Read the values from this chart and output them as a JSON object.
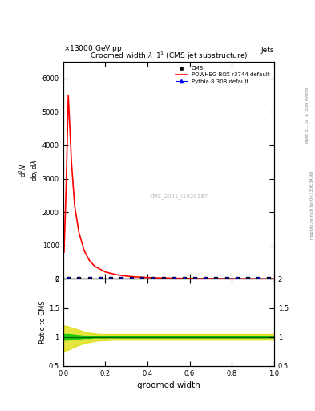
{
  "title": "Groomed width $\\lambda\\_1^1$ (CMS jet substructure)",
  "header_left": "\\times13000 GeV pp",
  "header_right": "Jets",
  "watermark": "CMS_2021_I1920187",
  "xlabel": "groomed width",
  "ylabel_ratio": "Ratio to CMS",
  "ylim_main": [
    0,
    6500
  ],
  "ylim_ratio": [
    0.5,
    2.0
  ],
  "xlim": [
    0,
    1.0
  ],
  "yticks_main": [
    0,
    1000,
    2000,
    3000,
    4000,
    5000,
    6000
  ],
  "cms_color": "#000000",
  "powheg_color": "#ff0000",
  "pythia_color": "#0000ff",
  "powheg_x": [
    0.005,
    0.015,
    0.025,
    0.04,
    0.055,
    0.075,
    0.1,
    0.125,
    0.15,
    0.2,
    0.25,
    0.3,
    0.35,
    0.4,
    0.45,
    0.5,
    0.55,
    0.6,
    0.65,
    0.7,
    0.75,
    0.8,
    0.85,
    0.9,
    0.95,
    1.0
  ],
  "powheg_y": [
    800,
    2800,
    5500,
    3500,
    2200,
    1400,
    850,
    550,
    380,
    210,
    130,
    85,
    58,
    42,
    31,
    24,
    18,
    14,
    11,
    9,
    7,
    6,
    5,
    4,
    3,
    2
  ],
  "cms_x": [
    0.025,
    0.075,
    0.125,
    0.175,
    0.225,
    0.275,
    0.325,
    0.375,
    0.425,
    0.475,
    0.525,
    0.575,
    0.625,
    0.675,
    0.725,
    0.775,
    0.825,
    0.875,
    0.925,
    0.975
  ],
  "cms_y": [
    0.5,
    0.5,
    0.5,
    0.5,
    0.5,
    0.5,
    0.5,
    0.5,
    0.5,
    0.5,
    0.5,
    0.5,
    0.5,
    0.5,
    0.5,
    0.5,
    0.5,
    0.5,
    0.5,
    0.5
  ],
  "pythia_x": [
    0.025,
    0.075,
    0.125,
    0.175,
    0.225,
    0.275,
    0.325,
    0.375,
    0.425,
    0.475,
    0.525,
    0.575,
    0.625,
    0.675,
    0.725,
    0.775,
    0.825,
    0.875,
    0.925,
    0.975
  ],
  "pythia_y": [
    0.5,
    0.5,
    0.5,
    0.5,
    0.5,
    0.5,
    0.5,
    0.5,
    0.5,
    0.5,
    0.5,
    0.5,
    0.5,
    0.5,
    0.5,
    0.5,
    0.5,
    0.5,
    0.5,
    0.5
  ],
  "ratio_x": [
    0.0,
    0.025,
    0.05,
    0.075,
    0.1,
    0.125,
    0.15,
    0.175,
    0.2,
    0.25,
    0.3,
    0.35,
    0.4,
    0.45,
    0.5,
    0.55,
    0.6,
    0.65,
    0.7,
    0.75,
    0.8,
    0.85,
    0.9,
    0.95,
    1.0
  ],
  "ratio_center": [
    1.0,
    1.0,
    1.0,
    1.0,
    1.0,
    1.0,
    1.0,
    1.0,
    1.0,
    1.0,
    1.0,
    1.0,
    1.0,
    1.0,
    1.0,
    1.0,
    1.0,
    1.0,
    1.0,
    1.0,
    1.0,
    1.0,
    1.0,
    1.0,
    1.0
  ],
  "ratio_green_upper": [
    1.05,
    1.05,
    1.04,
    1.03,
    1.02,
    1.02,
    1.01,
    1.01,
    1.01,
    1.01,
    1.01,
    1.01,
    1.01,
    1.01,
    1.01,
    1.01,
    1.01,
    1.01,
    1.01,
    1.01,
    1.01,
    1.01,
    1.01,
    1.01,
    1.01
  ],
  "ratio_green_lower": [
    0.95,
    0.95,
    0.96,
    0.97,
    0.98,
    0.98,
    0.99,
    0.99,
    0.99,
    0.99,
    0.99,
    0.99,
    0.99,
    0.99,
    0.99,
    0.99,
    0.99,
    0.99,
    0.99,
    0.99,
    0.99,
    0.99,
    0.99,
    0.99,
    0.99
  ],
  "ratio_yellow_upper": [
    1.2,
    1.18,
    1.15,
    1.12,
    1.09,
    1.07,
    1.06,
    1.05,
    1.05,
    1.05,
    1.05,
    1.05,
    1.05,
    1.05,
    1.05,
    1.05,
    1.05,
    1.05,
    1.05,
    1.05,
    1.05,
    1.05,
    1.05,
    1.05,
    1.05
  ],
  "ratio_yellow_lower": [
    0.75,
    0.78,
    0.82,
    0.86,
    0.89,
    0.91,
    0.93,
    0.94,
    0.94,
    0.95,
    0.95,
    0.95,
    0.95,
    0.95,
    0.95,
    0.95,
    0.95,
    0.95,
    0.95,
    0.95,
    0.95,
    0.95,
    0.95,
    0.95,
    0.95
  ],
  "bg_color": "#ffffff"
}
